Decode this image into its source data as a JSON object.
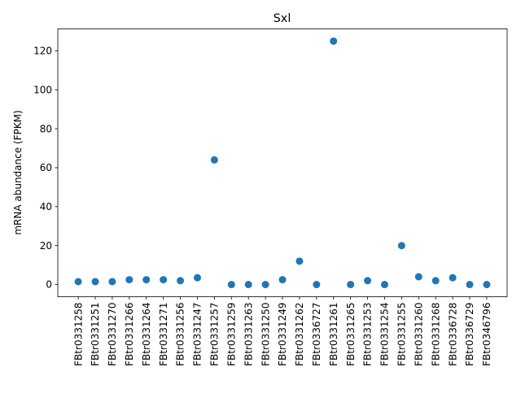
{
  "chart_data": {
    "type": "scatter",
    "title": "Sxl",
    "xlabel": "",
    "ylabel": "mRNA abundance (FPKM)",
    "categories": [
      "FBtr0331258",
      "FBtr0331251",
      "FBtr0331270",
      "FBtr0331266",
      "FBtr0331264",
      "FBtr0331271",
      "FBtr0331256",
      "FBtr0331247",
      "FBtr0331257",
      "FBtr0331259",
      "FBtr0331263",
      "FBtr0331250",
      "FBtr0331249",
      "FBtr0331262",
      "FBtr0336727",
      "FBtr0331261",
      "FBtr0331265",
      "FBtr0331253",
      "FBtr0331254",
      "FBtr0331255",
      "FBtr0331260",
      "FBtr0331268",
      "FBtr0336728",
      "FBtr0336729",
      "FBtr0346796"
    ],
    "values": [
      1.5,
      1.5,
      1.5,
      2.5,
      2.5,
      2.5,
      2.0,
      3.5,
      64.0,
      0.0,
      0.0,
      0.0,
      2.5,
      12.0,
      0.0,
      125.0,
      0.0,
      2.0,
      0.0,
      20.0,
      4.0,
      2.0,
      3.5,
      0.0,
      0.0
    ],
    "yticks": [
      0,
      20,
      40,
      60,
      80,
      100,
      120
    ],
    "ylim": [
      -6.25,
      131.25
    ],
    "grid": false,
    "legend": "none",
    "marker_color": "#1f77b4"
  }
}
